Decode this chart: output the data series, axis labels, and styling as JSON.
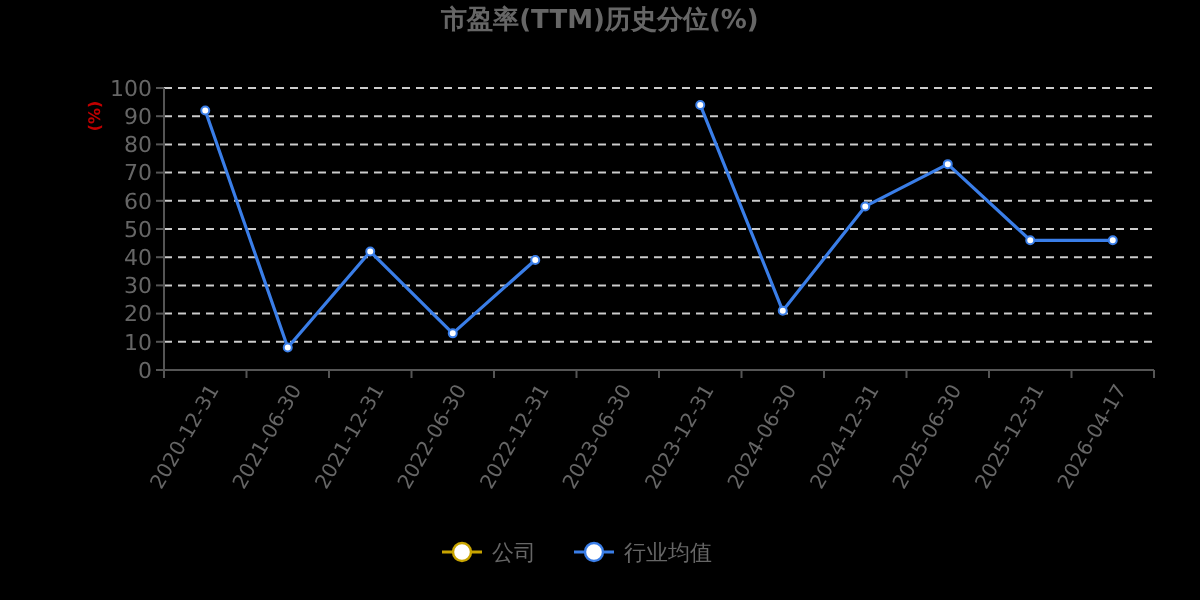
{
  "chart_data": {
    "type": "line",
    "title": "市盈率(TTM)历史分位(%)",
    "ylabel": "(%)",
    "categories": [
      "2020-12-31",
      "2021-06-30",
      "2021-12-31",
      "2022-06-30",
      "2022-12-31",
      "2023-06-30",
      "2023-12-31",
      "2024-06-30",
      "2024-12-31",
      "2025-06-30",
      "2025-12-31",
      "2026-04-17"
    ],
    "series": [
      {
        "name": "公司",
        "color": "#c8a400",
        "values": [
          null,
          null,
          null,
          null,
          null,
          null,
          null,
          null,
          null,
          null,
          null,
          null
        ]
      },
      {
        "name": "行业均值",
        "color": "#3a7ee8",
        "values": [
          92,
          8,
          42,
          13,
          39,
          null,
          94,
          21,
          58,
          73,
          46,
          46
        ]
      }
    ],
    "ylim": [
      0,
      100
    ],
    "yticks": [
      0,
      10,
      20,
      30,
      40,
      50,
      60,
      70,
      80,
      90,
      100
    ],
    "grid": "y",
    "legend": "bottom",
    "marker": "circle",
    "line_style": "solid"
  }
}
